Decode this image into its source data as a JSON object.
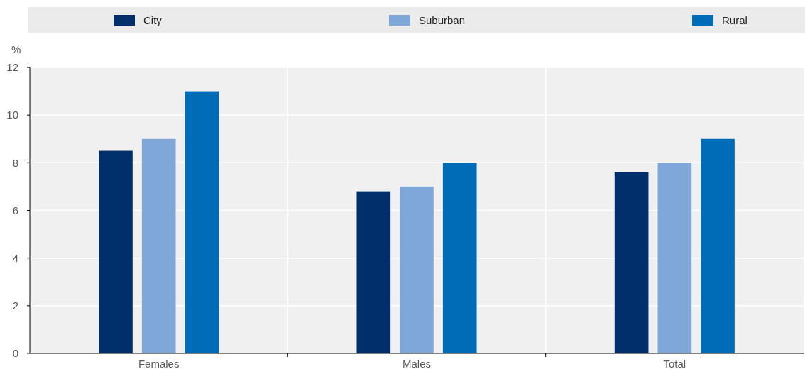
{
  "chart_data": {
    "type": "bar",
    "ylabel": "%",
    "categories": [
      "Females",
      "Males",
      "Total"
    ],
    "series": [
      {
        "name": "City",
        "color": "#002f6c",
        "values": [
          8.5,
          6.8,
          7.6
        ]
      },
      {
        "name": "Suburban",
        "color": "#7fa8d9",
        "values": [
          9,
          7,
          8
        ]
      },
      {
        "name": "Rural",
        "color": "#006bb6",
        "values": [
          11,
          8,
          9
        ]
      }
    ],
    "ylim": [
      0,
      12
    ],
    "yticks": [
      0,
      2,
      4,
      6,
      8,
      10,
      12
    ],
    "grid": true,
    "legend": "top"
  }
}
